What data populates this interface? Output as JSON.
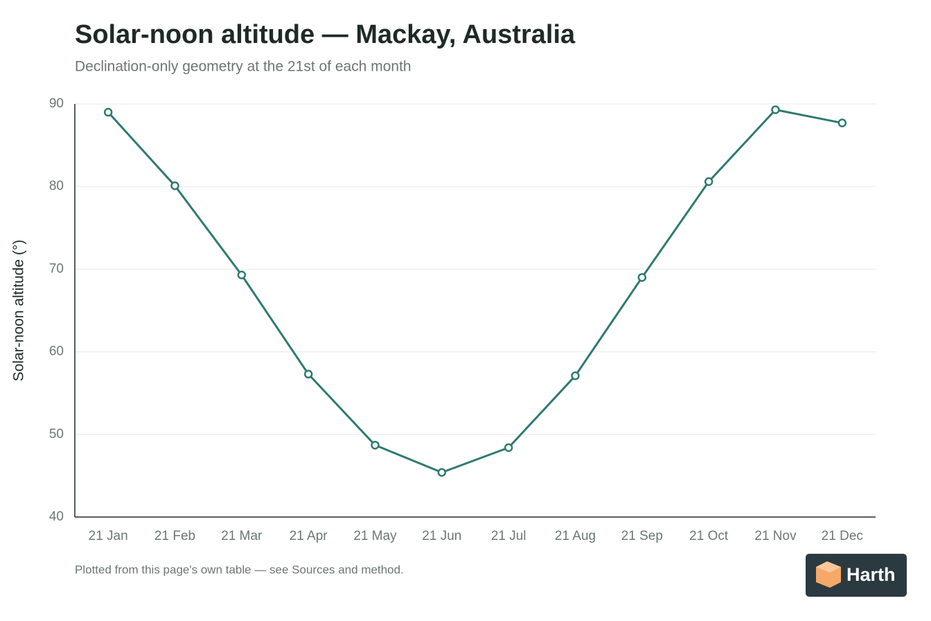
{
  "chart_data": {
    "type": "line",
    "title": "Solar-noon altitude — Mackay, Australia",
    "subtitle": "Declination-only geometry at the 21st of each month",
    "y_label": "Solar-noon altitude (°)",
    "footnote": "Plotted from this page's own table — see Sources and method.",
    "brand": "Harth",
    "categories": [
      "21 Jan",
      "21 Feb",
      "21 Mar",
      "21 Apr",
      "21 May",
      "21 Jun",
      "21 Jul",
      "21 Aug",
      "21 Sep",
      "21 Oct",
      "21 Nov",
      "21 Dec"
    ],
    "values": [
      89.0,
      80.1,
      69.3,
      57.3,
      48.7,
      45.4,
      48.4,
      57.1,
      69.0,
      80.6,
      89.3,
      87.7
    ],
    "color": "#2f7a70",
    "ylim": [
      40,
      90
    ],
    "yticks": [
      40,
      50,
      60,
      70,
      80,
      90
    ],
    "grid": true
  }
}
